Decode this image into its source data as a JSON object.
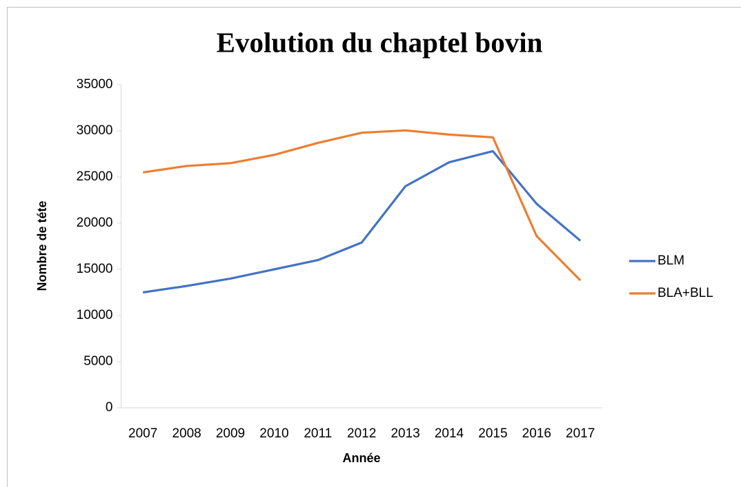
{
  "chart_data": {
    "type": "line",
    "title": "Evolution du chaptel bovin",
    "xlabel": "Année",
    "ylabel": "Nombre de téte",
    "categories": [
      "2007",
      "2008",
      "2009",
      "2010",
      "2011",
      "2012",
      "2013",
      "2014",
      "2015",
      "2016",
      "2017"
    ],
    "series": [
      {
        "name": "BLM",
        "color": "#4472c4",
        "values": [
          12500,
          13200,
          14000,
          15000,
          16000,
          17900,
          24000,
          26600,
          27800,
          22100,
          18100
        ]
      },
      {
        "name": "BLA+BLL",
        "color": "#ed7d31",
        "values": [
          25500,
          26200,
          26500,
          27400,
          28700,
          29800,
          30050,
          29600,
          29300,
          18600,
          13800
        ]
      }
    ],
    "ylim": [
      0,
      35000
    ],
    "yticks": [
      0,
      5000,
      10000,
      15000,
      20000,
      25000,
      30000,
      35000
    ],
    "grid": false,
    "legend": "right"
  }
}
